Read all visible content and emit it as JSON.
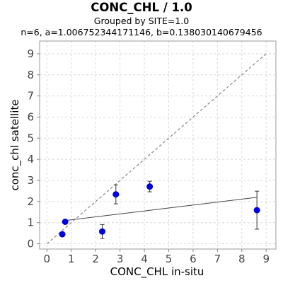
{
  "header": {
    "title": "CONC_CHL / 1.0",
    "subtitle": "Grouped by SITE=1.0",
    "stats": "n=6, a=1.006752344171146, b=0.138030140679456"
  },
  "chart_data": {
    "type": "scatter",
    "xlabel": "CONC_CHL in-situ",
    "ylabel": "conc_chl satellite",
    "xlim": [
      -0.3,
      9.4
    ],
    "ylim": [
      -0.25,
      9.6
    ],
    "xticks": [
      "0",
      "1",
      "2",
      "3",
      "4",
      "5",
      "6",
      "7",
      "8",
      "9"
    ],
    "yticks": [
      "0",
      "1",
      "2",
      "3",
      "4",
      "5",
      "6",
      "7",
      "8",
      "9"
    ],
    "grid": true,
    "points": [
      {
        "x": 0.63,
        "y": 0.45,
        "err": 0.0
      },
      {
        "x": 0.75,
        "y": 1.04,
        "err": 0.0
      },
      {
        "x": 2.27,
        "y": 0.58,
        "err": 0.33
      },
      {
        "x": 2.83,
        "y": 2.34,
        "err": 0.45
      },
      {
        "x": 4.22,
        "y": 2.71,
        "err": 0.25
      },
      {
        "x": 8.62,
        "y": 1.59,
        "err": 0.9
      }
    ],
    "fit_line": {
      "x": [
        0.75,
        8.62
      ],
      "y": [
        1.1,
        2.2
      ]
    },
    "identity_line": {
      "x": [
        0,
        9
      ],
      "y": [
        0,
        9
      ]
    },
    "colors": {
      "point": "#0000dd",
      "fit": "#444444",
      "identity": "#888888",
      "grid": "#d9d9d9"
    }
  }
}
